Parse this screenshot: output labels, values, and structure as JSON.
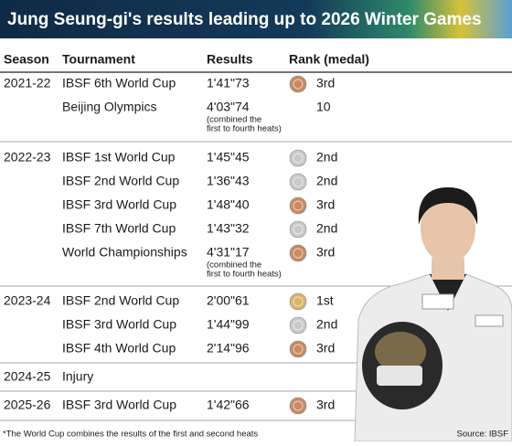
{
  "header": {
    "title": "Jung Seung-gi's results leading up to 2026 Winter Games"
  },
  "table": {
    "columns": [
      "Season",
      "Tournament",
      "Results",
      "Rank (medal)"
    ],
    "rows": [
      {
        "season": "2021-22",
        "tournament": "IBSF 6th World Cup",
        "result": "1'41\"73",
        "rank": "3rd",
        "medal": "#c98a62"
      },
      {
        "tournament": "Beijing Olympics",
        "result": "4'03\"74",
        "note": [
          "(combined the",
          "first to fourth heats)"
        ],
        "rank": "10"
      },
      {
        "season": "2022-23",
        "tournament": "IBSF 1st World Cup",
        "result": "1'45\"45",
        "rank": "2nd",
        "medal": "#c9c9c9"
      },
      {
        "tournament": "IBSF 2nd World Cup",
        "result": "1'36\"43",
        "rank": "2nd",
        "medal": "#c9c9c9"
      },
      {
        "tournament": "IBSF 3rd World Cup",
        "result": "1'48\"40",
        "rank": "3rd",
        "medal": "#c98a62"
      },
      {
        "tournament": "IBSF 7th World Cup",
        "result": "1'43\"32",
        "rank": "2nd",
        "medal": "#c9c9c9"
      },
      {
        "tournament": "World Championships",
        "result": "4'31\"17",
        "note": [
          "(combined the",
          "first to fourth heats)"
        ],
        "rank": "3rd",
        "medal": "#c98a62"
      },
      {
        "season": "2023-24",
        "tournament": "IBSF 2nd World Cup",
        "result": "2'00\"61",
        "rank": "1st",
        "medal": "#d9b56a"
      },
      {
        "tournament": "IBSF 3rd World Cup",
        "result": "1'44\"99",
        "rank": "2nd",
        "medal": "#c9c9c9"
      },
      {
        "tournament": "IBSF 4th World Cup",
        "result": "2'14\"96",
        "rank": "3rd",
        "medal": "#c98a62"
      },
      {
        "season": "2024-25",
        "tournament": "Injury"
      },
      {
        "season": "2025-26",
        "tournament": "IBSF 3rd World Cup",
        "result": "1'42\"66",
        "rank": "3rd",
        "medal": "#c98a62"
      }
    ]
  },
  "footer": {
    "note": "*The World Cup combines the results of the first and second heats",
    "source": "Source: IBSF"
  }
}
